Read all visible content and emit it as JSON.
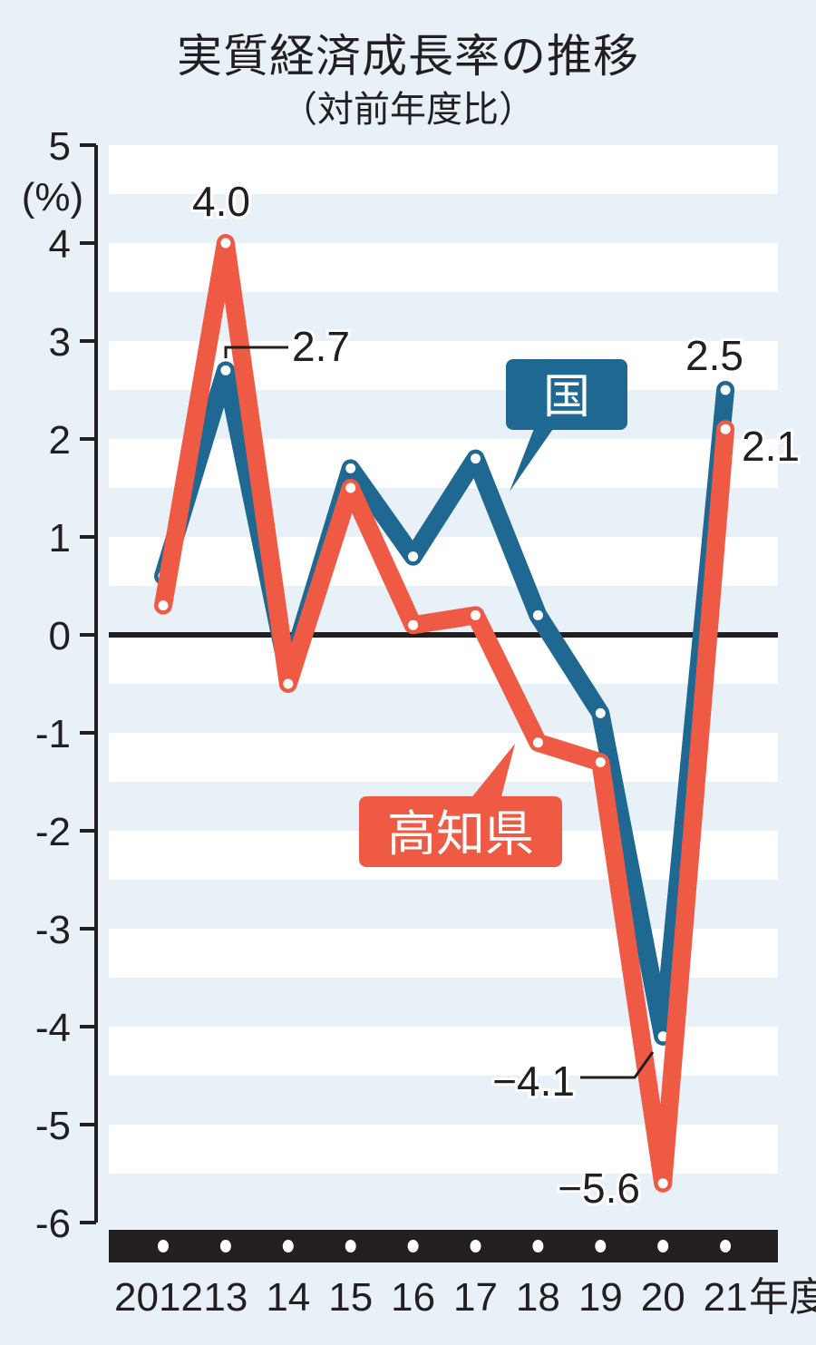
{
  "header": {
    "title": "実質経済成長率の推移",
    "subtitle": "（対前年度比）"
  },
  "axis": {
    "unit": "(%)",
    "x_suffix": "年度",
    "y_ticks": [
      "5",
      "4",
      "3",
      "2",
      "1",
      "0",
      "-1",
      "-2",
      "-3",
      "-4",
      "-5",
      "-6"
    ],
    "x_ticks": [
      "2012",
      "13",
      "14",
      "15",
      "16",
      "17",
      "18",
      "19",
      "20",
      "21"
    ]
  },
  "legend": {
    "national": "国",
    "kochi": "高知県"
  },
  "labels": {
    "kochi_2013": "4.0",
    "national_2013": "2.7",
    "national_2021": "2.5",
    "kochi_2021": "2.1",
    "national_2020": "−4.1",
    "kochi_2020": "−5.6"
  },
  "colors": {
    "national": "#1f6891",
    "kochi": "#ef5a44",
    "stripe": "#e8f1f8",
    "axis": "#231f20"
  },
  "chart_data": {
    "type": "line",
    "title": "実質経済成長率の推移（対前年度比）",
    "xlabel": "年度",
    "ylabel": "(%)",
    "categories": [
      "2012",
      "2013",
      "2014",
      "2015",
      "2016",
      "2017",
      "2018",
      "2019",
      "2020",
      "2021"
    ],
    "series": [
      {
        "name": "国",
        "values": [
          0.6,
          2.7,
          -0.4,
          1.7,
          0.8,
          1.8,
          0.2,
          -0.8,
          -4.1,
          2.5
        ]
      },
      {
        "name": "高知県",
        "values": [
          0.3,
          4.0,
          -0.5,
          1.5,
          0.1,
          0.2,
          -1.1,
          -1.3,
          -5.6,
          2.1
        ]
      }
    ],
    "ylim": [
      -6,
      5
    ],
    "grid": "alternating horizontal stripes",
    "annotations": [
      "4.0",
      "2.7",
      "2.5",
      "2.1",
      "−4.1",
      "−5.6"
    ]
  }
}
